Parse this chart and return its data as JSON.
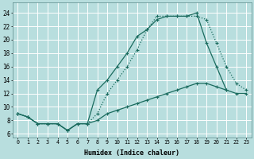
{
  "xlabel": "Humidex (Indice chaleur)",
  "bg_color": "#b8dede",
  "grid_color": "#ffffff",
  "line_color": "#1a6b5e",
  "xlim": [
    -0.5,
    23.5
  ],
  "ylim": [
    5.5,
    25.5
  ],
  "xticks": [
    0,
    1,
    2,
    3,
    4,
    5,
    6,
    7,
    8,
    9,
    10,
    11,
    12,
    13,
    14,
    15,
    16,
    17,
    18,
    19,
    20,
    21,
    22,
    23
  ],
  "yticks": [
    6,
    8,
    10,
    12,
    14,
    16,
    18,
    20,
    22,
    24
  ],
  "line1_x": [
    0,
    1,
    2,
    3,
    4,
    5,
    6,
    7,
    8,
    9,
    10,
    11,
    12,
    13,
    14,
    15,
    16,
    17,
    18,
    19,
    20,
    21,
    22,
    23
  ],
  "line1_y": [
    9.0,
    8.5,
    7.5,
    7.5,
    7.5,
    6.5,
    7.5,
    7.5,
    8.0,
    9.0,
    9.5,
    10.0,
    10.5,
    11.0,
    11.5,
    12.0,
    12.5,
    13.0,
    13.5,
    13.5,
    13.0,
    12.5,
    12.0,
    12.0
  ],
  "line2_x": [
    0,
    1,
    2,
    3,
    4,
    5,
    6,
    7,
    8,
    9,
    10,
    11,
    12,
    13,
    14,
    15,
    16,
    17,
    18,
    19,
    20,
    21,
    22,
    23
  ],
  "line2_y": [
    9.0,
    8.5,
    7.5,
    7.5,
    7.5,
    6.5,
    7.5,
    7.5,
    12.5,
    14.0,
    16.0,
    18.0,
    20.5,
    21.5,
    23.0,
    23.5,
    23.5,
    23.5,
    24.0,
    19.5,
    16.0,
    12.5,
    null,
    null
  ],
  "line3_x": [
    0,
    1,
    2,
    3,
    4,
    5,
    6,
    7,
    8,
    9,
    10,
    11,
    12,
    13,
    14,
    15,
    16,
    17,
    18,
    19,
    20,
    21,
    22,
    23
  ],
  "line3_y": [
    9.0,
    8.5,
    7.5,
    7.5,
    7.5,
    6.5,
    7.5,
    7.5,
    9.0,
    12.0,
    14.0,
    16.0,
    18.5,
    21.5,
    23.5,
    23.5,
    23.5,
    23.5,
    23.5,
    23.0,
    19.5,
    16.0,
    13.5,
    12.5
  ]
}
